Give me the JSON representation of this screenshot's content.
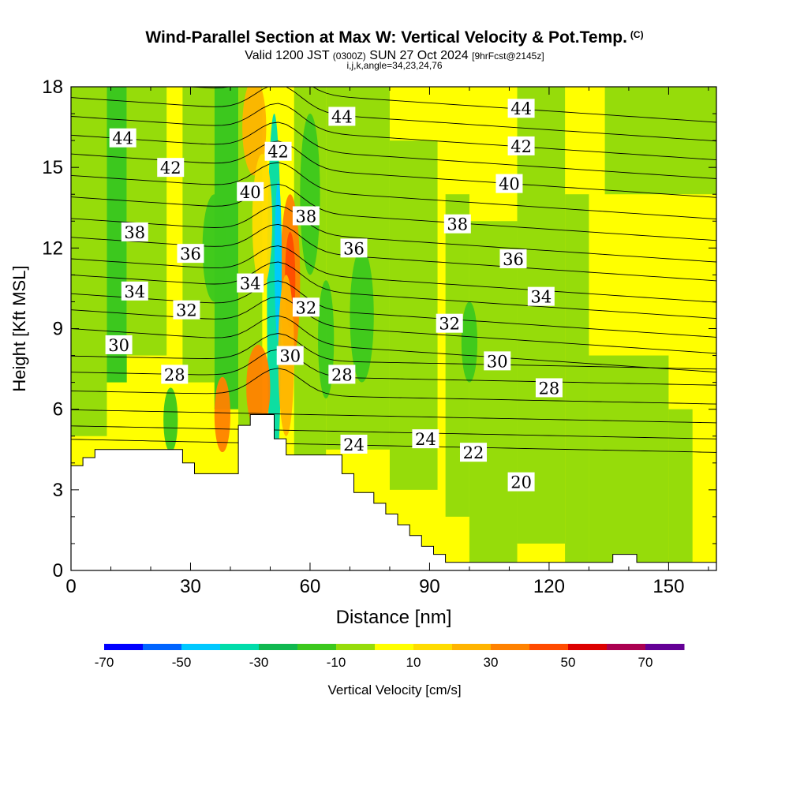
{
  "title": {
    "main": "Wind-Parallel Section at Max W: Vertical Velocity & Pot.Temp.",
    "tag": "(C)",
    "valid_prefix": "Valid 1200 JST",
    "utc": "(0300Z)",
    "valid_date": "SUN 27 Oct 2024",
    "forecast": "[9hrFcst@2145z]",
    "indices": "i,j,k,angle=34,23,24,76"
  },
  "chart_data": {
    "type": "heatmap",
    "xlabel": "Distance [nm]",
    "ylabel": "Height [Kft MSL]",
    "xlim": [
      0,
      162
    ],
    "ylim": [
      0,
      18
    ],
    "x_ticks": [
      0,
      30,
      60,
      90,
      120,
      150
    ],
    "y_ticks": [
      0,
      3,
      6,
      9,
      12,
      15,
      18
    ],
    "colorbar": {
      "label": "Vertical Velocity [cm/s]",
      "range": [
        -70,
        80
      ],
      "tick_values": [
        -70,
        -50,
        -30,
        -10,
        10,
        30,
        50,
        70
      ],
      "colors": [
        "#0000ff",
        "#0064ff",
        "#00c8ff",
        "#00dcaa",
        "#10b850",
        "#3cc81e",
        "#96dc0a",
        "#ffff00",
        "#ffdc00",
        "#ffb400",
        "#ff8200",
        "#ff4b00",
        "#dc0000",
        "#aa0050",
        "#640096"
      ]
    },
    "terrain": [
      [
        0,
        3.9
      ],
      [
        3,
        3.9
      ],
      [
        3,
        4.2
      ],
      [
        6,
        4.2
      ],
      [
        6,
        4.5
      ],
      [
        28,
        4.5
      ],
      [
        28,
        4.0
      ],
      [
        31,
        4.0
      ],
      [
        31,
        3.6
      ],
      [
        42,
        3.6
      ],
      [
        42,
        5.4
      ],
      [
        45,
        5.4
      ],
      [
        45,
        5.8
      ],
      [
        51,
        5.8
      ],
      [
        51,
        4.9
      ],
      [
        54,
        4.9
      ],
      [
        54,
        4.3
      ],
      [
        68,
        4.3
      ],
      [
        68,
        3.6
      ],
      [
        71,
        3.6
      ],
      [
        71,
        2.9
      ],
      [
        76,
        2.9
      ],
      [
        76,
        2.5
      ],
      [
        79,
        2.5
      ],
      [
        79,
        2.1
      ],
      [
        82,
        2.1
      ],
      [
        82,
        1.7
      ],
      [
        85,
        1.7
      ],
      [
        85,
        1.3
      ],
      [
        88,
        1.3
      ],
      [
        88,
        0.9
      ],
      [
        91,
        0.9
      ],
      [
        91,
        0.6
      ],
      [
        94,
        0.6
      ],
      [
        94,
        0.3
      ],
      [
        136,
        0.3
      ],
      [
        136,
        0.6
      ],
      [
        142,
        0.6
      ],
      [
        142,
        0.3
      ],
      [
        162,
        0.3
      ]
    ],
    "theta_contours": [
      {
        "value": 20,
        "label_at": [
          113,
          3.3
        ]
      },
      {
        "value": 22,
        "label_at": [
          101,
          4.4
        ]
      },
      {
        "value": 24,
        "label_at": [
          71,
          4.7
        ]
      },
      {
        "value": 24,
        "label_at": [
          89,
          4.9
        ]
      },
      {
        "value": 28,
        "label_at": [
          26,
          7.3
        ]
      },
      {
        "value": 28,
        "label_at": [
          68,
          7.3
        ]
      },
      {
        "value": 28,
        "label_at": [
          120,
          6.8
        ]
      },
      {
        "value": 30,
        "label_at": [
          12,
          8.4
        ]
      },
      {
        "value": 30,
        "label_at": [
          55,
          8.0
        ]
      },
      {
        "value": 30,
        "label_at": [
          107,
          7.8
        ]
      },
      {
        "value": 32,
        "label_at": [
          29,
          9.7
        ]
      },
      {
        "value": 32,
        "label_at": [
          59,
          9.8
        ]
      },
      {
        "value": 32,
        "label_at": [
          95,
          9.2
        ]
      },
      {
        "value": 34,
        "label_at": [
          16,
          10.4
        ]
      },
      {
        "value": 34,
        "label_at": [
          45,
          10.7
        ]
      },
      {
        "value": 34,
        "label_at": [
          118,
          10.2
        ]
      },
      {
        "value": 36,
        "label_at": [
          30,
          11.8
        ]
      },
      {
        "value": 36,
        "label_at": [
          71,
          12.0
        ]
      },
      {
        "value": 36,
        "label_at": [
          111,
          11.6
        ]
      },
      {
        "value": 38,
        "label_at": [
          16,
          12.6
        ]
      },
      {
        "value": 38,
        "label_at": [
          59,
          13.2
        ]
      },
      {
        "value": 38,
        "label_at": [
          97,
          12.9
        ]
      },
      {
        "value": 40,
        "label_at": [
          45,
          14.1
        ]
      },
      {
        "value": 40,
        "label_at": [
          110,
          14.4
        ]
      },
      {
        "value": 42,
        "label_at": [
          25,
          15.0
        ]
      },
      {
        "value": 42,
        "label_at": [
          52,
          15.6
        ]
      },
      {
        "value": 42,
        "label_at": [
          113,
          15.8
        ]
      },
      {
        "value": 44,
        "label_at": [
          13,
          16.1
        ]
      },
      {
        "value": 44,
        "label_at": [
          68,
          16.9
        ]
      },
      {
        "value": 44,
        "label_at": [
          113,
          17.2
        ]
      }
    ]
  }
}
